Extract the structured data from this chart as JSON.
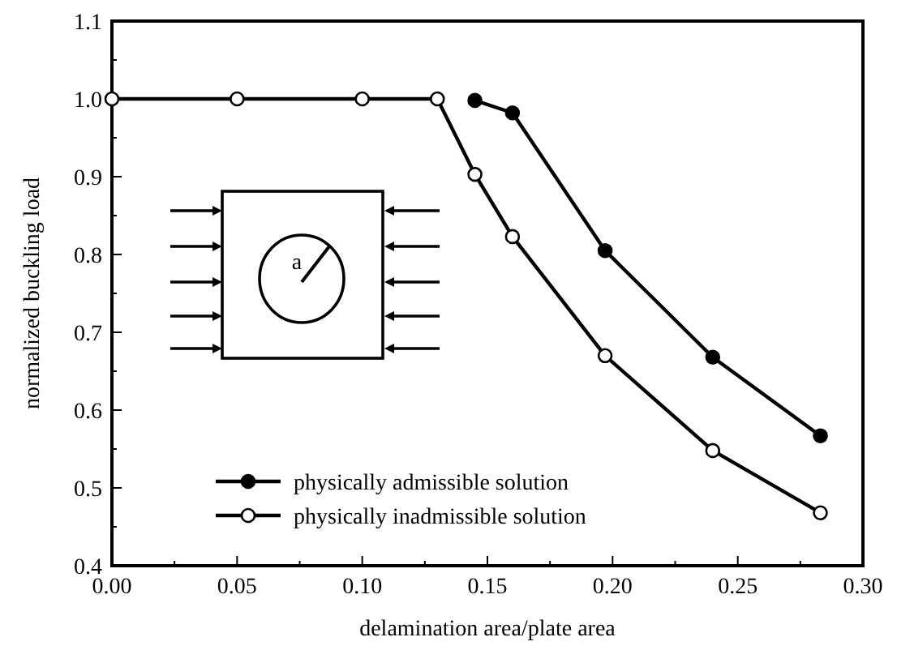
{
  "chart_data": {
    "type": "line",
    "xlabel": "delamination area/plate area",
    "ylabel": "normalized buckling load",
    "xlim": [
      0,
      0.3
    ],
    "ylim": [
      0.4,
      1.1
    ],
    "xticks": [
      {
        "value": 0,
        "label": "0.00"
      },
      {
        "value": 0.025,
        "label": null
      },
      {
        "value": 0.05,
        "label": "0.05"
      },
      {
        "value": 0.075,
        "label": null
      },
      {
        "value": 0.1,
        "label": "0.10"
      },
      {
        "value": 0.125,
        "label": null
      },
      {
        "value": 0.15,
        "label": "0.15"
      },
      {
        "value": 0.175,
        "label": null
      },
      {
        "value": 0.2,
        "label": "0.20"
      },
      {
        "value": 0.225,
        "label": null
      },
      {
        "value": 0.25,
        "label": "0.25"
      },
      {
        "value": 0.275,
        "label": null
      },
      {
        "value": 0.3,
        "label": "0.30"
      }
    ],
    "yticks": [
      {
        "value": 0.4,
        "label": "0.4"
      },
      {
        "value": 0.45,
        "label": null
      },
      {
        "value": 0.5,
        "label": "0.5"
      },
      {
        "value": 0.55,
        "label": null
      },
      {
        "value": 0.6,
        "label": "0.6"
      },
      {
        "value": 0.65,
        "label": null
      },
      {
        "value": 0.7,
        "label": "0.7"
      },
      {
        "value": 0.75,
        "label": null
      },
      {
        "value": 0.8,
        "label": "0.8"
      },
      {
        "value": 0.85,
        "label": null
      },
      {
        "value": 0.9,
        "label": "0.9"
      },
      {
        "value": 0.95,
        "label": null
      },
      {
        "value": 1.0,
        "label": "1.0"
      },
      {
        "value": 1.05,
        "label": null
      },
      {
        "value": 1.1,
        "label": "1.1"
      }
    ],
    "marker": "circle",
    "line_style": "solid",
    "legend": "bottom left",
    "grid": false,
    "annotations": [
      "a"
    ],
    "series": [
      {
        "name": "physically admissible solution",
        "color": "#000000",
        "x": [
          0.145,
          0.16,
          0.197,
          0.24,
          0.283
        ],
        "values": [
          0.998,
          0.982,
          0.805,
          0.668,
          0.567
        ]
      },
      {
        "name": "physically inadmissible solution",
        "color": "#000000",
        "x": [
          0,
          0.05,
          0.1,
          0.13,
          0.145,
          0.16,
          0.197,
          0.24,
          0.283
        ],
        "values": [
          1.0,
          1.0,
          1.0,
          1.0,
          0.903,
          0.823,
          0.67,
          0.548,
          0.468
        ]
      }
    ]
  }
}
